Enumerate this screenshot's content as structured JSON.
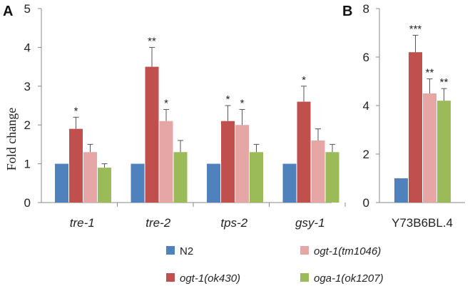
{
  "chart_data": [
    {
      "panel": "A",
      "type": "bar",
      "ylabel": "Fold change",
      "ylim": [
        0,
        5
      ],
      "yticks": [
        "0",
        "1",
        "2",
        "3",
        "4",
        "5"
      ],
      "categories": [
        "tre-1",
        "tre-2",
        "tps-2",
        "gsy-1"
      ],
      "series": [
        {
          "name": "N2",
          "values": [
            1,
            1,
            1,
            1
          ],
          "errors": [
            0,
            0,
            0,
            0
          ],
          "stars": [
            "",
            "",
            "",
            ""
          ]
        },
        {
          "name": "ogt-1(ok430)",
          "values": [
            1.9,
            3.5,
            2.1,
            2.6
          ],
          "errors": [
            0.3,
            0.5,
            0.4,
            0.4
          ],
          "stars": [
            "*",
            "**",
            "*",
            "*"
          ]
        },
        {
          "name": "ogt-1(tm1046)",
          "values": [
            1.3,
            2.1,
            2.0,
            1.6
          ],
          "errors": [
            0.2,
            0.3,
            0.4,
            0.3
          ],
          "stars": [
            "",
            "*",
            "*",
            ""
          ]
        },
        {
          "name": "oga-1(ok1207)",
          "values": [
            0.9,
            1.3,
            1.3,
            1.3
          ],
          "errors": [
            0.1,
            0.3,
            0.2,
            0.2
          ],
          "stars": [
            "",
            "",
            "",
            ""
          ]
        }
      ]
    },
    {
      "panel": "B",
      "type": "bar",
      "ylim": [
        0,
        8
      ],
      "yticks": [
        "0",
        "2",
        "4",
        "6",
        "8"
      ],
      "categories": [
        "Y73B6BL.4"
      ],
      "series": [
        {
          "name": "N2",
          "values": [
            1
          ],
          "errors": [
            0
          ],
          "stars": [
            ""
          ]
        },
        {
          "name": "ogt-1(ok430)",
          "values": [
            6.2
          ],
          "errors": [
            0.7
          ],
          "stars": [
            "***"
          ]
        },
        {
          "name": "ogt-1(tm1046)",
          "values": [
            4.5
          ],
          "errors": [
            0.6
          ],
          "stars": [
            "**"
          ]
        },
        {
          "name": "oga-1(ok1207)",
          "values": [
            4.2
          ],
          "errors": [
            0.5
          ],
          "stars": [
            "**"
          ]
        }
      ]
    }
  ],
  "legend": [
    {
      "label": "N2",
      "color": "#4f81bd"
    },
    {
      "label": "ogt-1(tm1046)",
      "color": "#e6a6a6"
    },
    {
      "label": "ogt-1(ok430)",
      "color": "#c0504d"
    },
    {
      "label": "oga-1(ok1207)",
      "color": "#9bbb59"
    }
  ],
  "colors": [
    "#4f81bd",
    "#c0504d",
    "#e6a6a6",
    "#9bbb59"
  ]
}
